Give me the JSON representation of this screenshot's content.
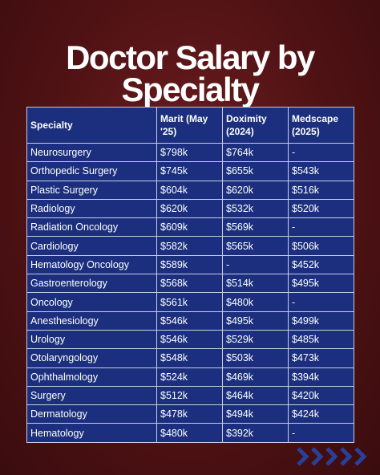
{
  "title": "Doctor Salary by Specialty",
  "table": {
    "header": [
      "Specialty",
      "Marit (May '25)",
      "Doximity (2024)",
      "Medscape (2025)"
    ],
    "rows": [
      [
        "Neurosurgery",
        "$798k",
        "$764k",
        "-"
      ],
      [
        "Orthopedic Surgery",
        "$745k",
        "$655k",
        "$543k"
      ],
      [
        "Plastic Surgery",
        "$604k",
        "$620k",
        "$516k"
      ],
      [
        "Radiology",
        "$620k",
        "$532k",
        "$520k"
      ],
      [
        "Radiation Oncology",
        "$609k",
        "$569k",
        "-"
      ],
      [
        "Cardiology",
        "$582k",
        "$565k",
        "$506k"
      ],
      [
        "Hematology Oncology",
        "$589k",
        "-",
        "$452k"
      ],
      [
        "Gastroenterology",
        "$568k",
        "$514k",
        "$495k"
      ],
      [
        "Oncology",
        "$561k",
        "$480k",
        "-"
      ],
      [
        "Anesthesiology",
        "$546k",
        "$495k",
        "$499k"
      ],
      [
        "Urology",
        "$546k",
        "$529k",
        "$485k"
      ],
      [
        "Otolaryngology",
        "$548k",
        "$503k",
        "$473k"
      ],
      [
        "Ophthalmology",
        "$524k",
        "$469k",
        "$394k"
      ],
      [
        "Surgery",
        "$512k",
        "$464k",
        "$420k"
      ],
      [
        "Dermatology",
        "$478k",
        "$494k",
        "$424k"
      ],
      [
        "Hematology",
        "$480k",
        "$392k",
        "-"
      ]
    ]
  }
}
